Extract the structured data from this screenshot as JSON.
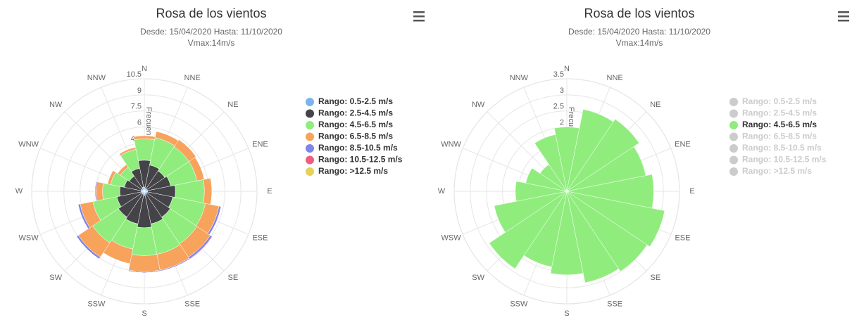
{
  "chart_data": [
    {
      "type": "windrose",
      "title": "Rosa de los vientos",
      "subtitle": [
        "Desde: 15/04/2020 Hasta: 11/10/2020",
        "Vmax:14m/s"
      ],
      "yaxis_label": "Frecuencia",
      "categories": [
        "N",
        "NNE",
        "NE",
        "ENE",
        "E",
        "ESE",
        "SE",
        "SSE",
        "S",
        "SSW",
        "SW",
        "WSW",
        "W",
        "WNW",
        "NW",
        "NNW"
      ],
      "ylim": [
        0,
        10.5
      ],
      "yticks": [
        0,
        1.5,
        3,
        4.5,
        6,
        7.5,
        9,
        10.5
      ],
      "series": [
        {
          "name": "Rango: 0.5-2.5 m/s",
          "color": "#7cb5ec",
          "visible": true,
          "values": [
            0.4,
            0.3,
            0.3,
            0.3,
            0.3,
            0.3,
            0.3,
            0.3,
            0.4,
            0.3,
            0.3,
            0.3,
            0.3,
            0.3,
            0.3,
            0.4
          ]
        },
        {
          "name": "Rango: 2.5-4.5 m/s",
          "color": "#434348",
          "visible": true,
          "values": [
            2.5,
            2.2,
            2.0,
            2.2,
            2.6,
            2.4,
            2.6,
            2.8,
            3.0,
            2.8,
            2.6,
            2.3,
            2.0,
            1.6,
            1.4,
            1.8
          ]
        },
        {
          "name": "Rango: 4.5-6.5 m/s",
          "color": "#90ed7d",
          "visible": true,
          "values": [
            2.0,
            2.6,
            2.7,
            2.5,
            2.7,
            3.1,
            3.0,
            2.9,
            2.6,
            2.4,
            2.9,
            2.3,
            1.6,
            1.3,
            1.0,
            1.8
          ]
        },
        {
          "name": "Rango: 6.5-8.5 m/s",
          "color": "#f7a35c",
          "visible": true,
          "values": [
            0.3,
            0.6,
            0.8,
            0.7,
            0.7,
            1.3,
            1.5,
            1.5,
            1.5,
            1.4,
            1.6,
            1.2,
            0.6,
            0.3,
            0.3,
            0.2
          ]
        },
        {
          "name": "Rango: 8.5-10.5 m/s",
          "color": "#8085e9",
          "visible": true,
          "values": [
            0,
            0,
            0,
            0,
            0,
            0.2,
            0.2,
            0.1,
            0.1,
            0,
            0.2,
            0.2,
            0.1,
            0,
            0,
            0
          ]
        },
        {
          "name": "Rango: 10.5-12.5 m/s",
          "color": "#f15c80",
          "visible": true,
          "values": [
            0,
            0,
            0,
            0,
            0,
            0,
            0.05,
            0,
            0,
            0,
            0,
            0,
            0,
            0,
            0,
            0
          ]
        },
        {
          "name": "Rango: >12.5 m/s",
          "color": "#e4d354",
          "visible": true,
          "values": [
            0,
            0,
            0,
            0,
            0,
            0,
            0,
            0,
            0,
            0,
            0,
            0,
            0,
            0,
            0,
            0
          ]
        }
      ]
    },
    {
      "type": "windrose",
      "title": "Rosa de los vientos",
      "subtitle": [
        "Desde: 15/04/2020 Hasta: 11/10/2020",
        "Vmax:14m/s"
      ],
      "yaxis_label": "Frecuencia",
      "categories": [
        "N",
        "NNE",
        "NE",
        "ENE",
        "E",
        "ESE",
        "SE",
        "SSE",
        "S",
        "SSW",
        "SW",
        "WSW",
        "W",
        "WNW",
        "NW",
        "NNW"
      ],
      "ylim": [
        0,
        3.5
      ],
      "yticks": [
        0,
        0.5,
        1,
        1.5,
        2,
        2.5,
        3,
        3.5
      ],
      "series": [
        {
          "name": "Rango: 0.5-2.5 m/s",
          "color": "#7cb5ec",
          "visible": false
        },
        {
          "name": "Rango: 2.5-4.5 m/s",
          "color": "#434348",
          "visible": false
        },
        {
          "name": "Rango: 4.5-6.5 m/s",
          "color": "#90ed7d",
          "visible": true,
          "values": [
            2.0,
            2.6,
            2.7,
            2.5,
            2.7,
            3.1,
            3.0,
            2.9,
            2.6,
            2.4,
            2.9,
            2.3,
            1.6,
            1.3,
            1.0,
            1.8
          ]
        },
        {
          "name": "Rango: 6.5-8.5 m/s",
          "color": "#f7a35c",
          "visible": false
        },
        {
          "name": "Rango: 8.5-10.5 m/s",
          "color": "#8085e9",
          "visible": false
        },
        {
          "name": "Rango: 10.5-12.5 m/s",
          "color": "#f15c80",
          "visible": false
        },
        {
          "name": "Rango: >12.5 m/s",
          "color": "#e4d354",
          "visible": false
        }
      ]
    }
  ]
}
